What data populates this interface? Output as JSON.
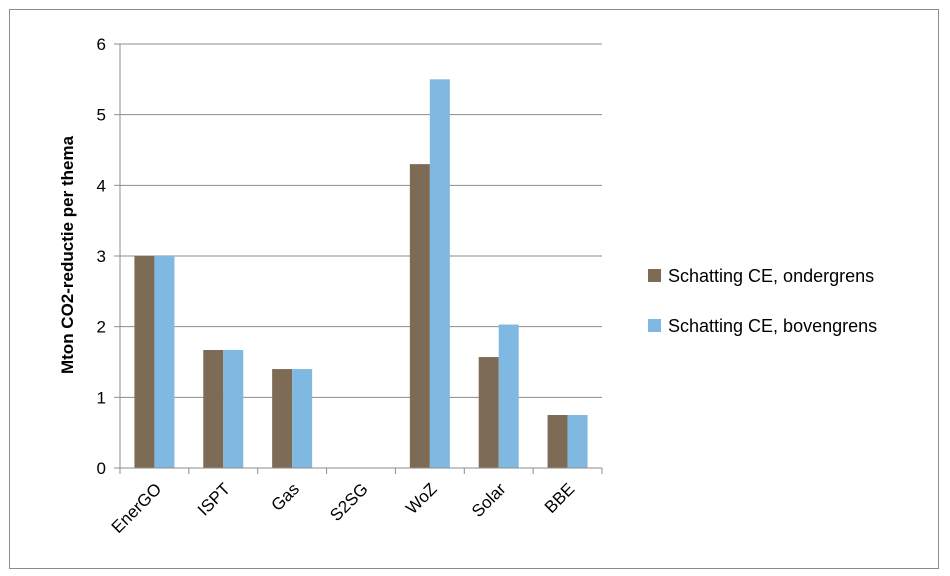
{
  "chart_data": {
    "type": "bar",
    "title": "",
    "xlabel": "",
    "ylabel": "Mton CO2-reductie per thema",
    "categories": [
      "EnerGO",
      "ISPT",
      "Gas",
      "S2SG",
      "WoZ",
      "Solar",
      "BBE"
    ],
    "series": [
      {
        "name": "Schatting CE, ondergrens",
        "color": "#7d6b55",
        "values": [
          3.0,
          1.67,
          1.4,
          0,
          4.3,
          1.57,
          0.75
        ]
      },
      {
        "name": "Schatting CE, bovengrens",
        "color": "#7fb9e2",
        "values": [
          3.0,
          1.67,
          1.4,
          0,
          5.5,
          2.03,
          0.75
        ]
      }
    ],
    "ylim": [
      0,
      6
    ],
    "yticks": [
      "0",
      "1",
      "2",
      "3",
      "4",
      "5",
      "6"
    ],
    "grid": true,
    "legend_position": "right"
  }
}
